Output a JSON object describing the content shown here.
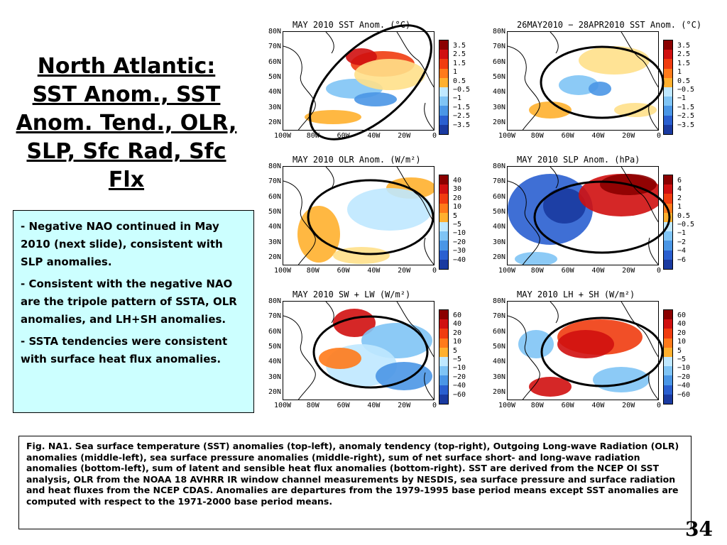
{
  "slide": {
    "title": "North Atlantic: SST Anom., SST Anom. Tend., OLR, SLP, Sfc Rad, Sfc Flx",
    "bullets": [
      "- Negative NAO continued in May 2010 (next slide), consistent with SLP anomalies.",
      "- Consistent with the negative NAO are the tripole pattern of SSTA, OLR anomalies, and LH+SH anomalies.",
      "- SSTA tendencies were consistent with surface heat flux anomalies."
    ],
    "caption": "Fig. NA1. Sea surface temperature (SST) anomalies (top-left), anomaly tendency (top-right), Outgoing Long-wave Radiation (OLR) anomalies (middle-left), sea surface pressure anomalies (middle-right), sum of net surface short- and long-wave radiation anomalies (bottom-left), sum of latent and sensible heat flux anomalies (bottom-right). SST are derived from the NCEP OI SST analysis, OLR from the NOAA 18 AVHRR IR window channel measurements by NESDIS, sea surface pressure and surface radiation and heat fluxes from the NCEP CDAS. Anomalies are departures from the 1979-1995 base period means except SST anomalies are computed with respect to the 1971-2000 base period means.",
    "page_number": "34"
  },
  "axes": {
    "lat_labels": [
      "80N",
      "70N",
      "60N",
      "50N",
      "40N",
      "30N",
      "20N"
    ],
    "lon_labels": [
      "100W",
      "80W",
      "60W",
      "40W",
      "20W",
      "0"
    ]
  },
  "colors": {
    "warm": [
      "#8b0000",
      "#d01010",
      "#f03c10",
      "#ff7a1a",
      "#ffb02e",
      "#ffe08a"
    ],
    "cool": [
      "#bfe8ff",
      "#7fc4f5",
      "#4a96e6",
      "#2a5fd0",
      "#1a3aa0"
    ],
    "land": "#ffffff",
    "coast": "#000000"
  },
  "panels": [
    {
      "title": "MAY 2010 SST Anom. (°C)",
      "levels": [
        "3.5",
        "2.5",
        "1.5",
        "1",
        "0.5",
        "−0.5",
        "−1",
        "−1.5",
        "−2.5",
        "−3.5"
      ]
    },
    {
      "title": "26MAY2010 − 28APR2010 SST Anom. (°C)",
      "levels": [
        "3.5",
        "2.5",
        "1.5",
        "1",
        "0.5",
        "−0.5",
        "−1",
        "−1.5",
        "−2.5",
        "−3.5"
      ]
    },
    {
      "title": "MAY 2010 OLR Anom. (W/m²)",
      "levels": [
        "40",
        "30",
        "20",
        "10",
        "5",
        "−5",
        "−10",
        "−20",
        "−30",
        "−40"
      ]
    },
    {
      "title": "MAY 2010 SLP Anom. (hPa)",
      "levels": [
        "6",
        "4",
        "2",
        "1",
        "0.5",
        "−0.5",
        "−1",
        "−2",
        "−4",
        "−6"
      ]
    },
    {
      "title": "MAY 2010 SW + LW (W/m²)",
      "levels": [
        "60",
        "40",
        "20",
        "10",
        "5",
        "−5",
        "−10",
        "−20",
        "−40",
        "−60"
      ]
    },
    {
      "title": "MAY 2010 LH + SH (W/m²)",
      "levels": [
        "60",
        "40",
        "20",
        "10",
        "5",
        "−5",
        "−10",
        "−20",
        "−40",
        "−60"
      ]
    }
  ]
}
